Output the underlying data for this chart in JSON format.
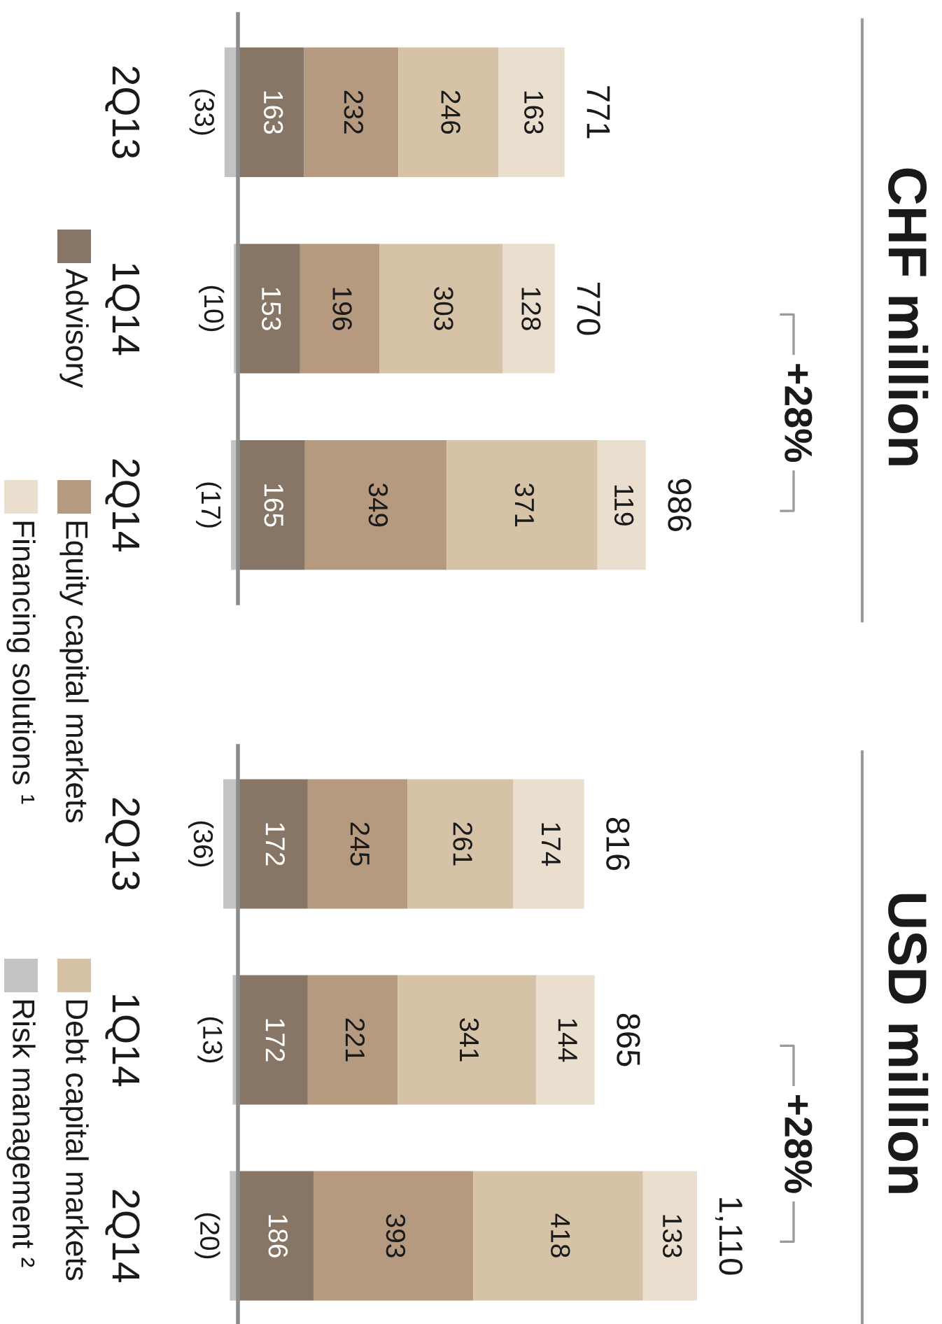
{
  "chart_data": [
    {
      "type": "bar",
      "orientation": "horizontal",
      "stacked": true,
      "categories": [
        "2Q13",
        "1Q14",
        "2Q14"
      ],
      "series": [
        {
          "name": "Advisory",
          "color": "#877666",
          "values": [
            163,
            153,
            165
          ]
        },
        {
          "name": "Equity capital markets",
          "color": "#b69a7f",
          "values": [
            232,
            196,
            349
          ]
        },
        {
          "name": "Debt capital markets",
          "color": "#d6c2a7",
          "values": [
            246,
            303,
            371
          ]
        },
        {
          "name": "Financing solutions ¹",
          "color": "#eadfcf",
          "values": [
            163,
            128,
            119
          ]
        },
        {
          "name": "Risk management ²",
          "color": "#c3c3c3",
          "values": [
            -33,
            -10,
            -17
          ],
          "value_labels": [
            "(33)",
            "(10)",
            "(17)"
          ]
        }
      ],
      "tick_labels": "y",
      "data_labels": true,
      "totals": [
        "771",
        "770",
        "986"
      ],
      "annotations": [
        "CHF million",
        "+28%"
      ],
      "legend": "left"
    },
    {
      "type": "bar",
      "orientation": "horizontal",
      "stacked": true,
      "categories": [
        "2Q13",
        "1Q14",
        "2Q14"
      ],
      "series": [
        {
          "color": "#877666",
          "values": [
            172,
            172,
            186
          ]
        },
        {
          "color": "#b69a7f",
          "values": [
            245,
            221,
            393
          ]
        },
        {
          "color": "#d6c2a7",
          "values": [
            261,
            341,
            418
          ]
        },
        {
          "color": "#eadfcf",
          "values": [
            174,
            144,
            133
          ]
        },
        {
          "color": "#c3c3c3",
          "values": [
            -36,
            -13,
            -20
          ],
          "value_labels": [
            "(36)",
            "(13)",
            "(20)"
          ]
        }
      ],
      "tick_labels": "y",
      "data_labels": true,
      "totals": [
        "816",
        "865",
        "1,110"
      ],
      "annotations": [
        "USD million",
        "+28%"
      ]
    }
  ]
}
